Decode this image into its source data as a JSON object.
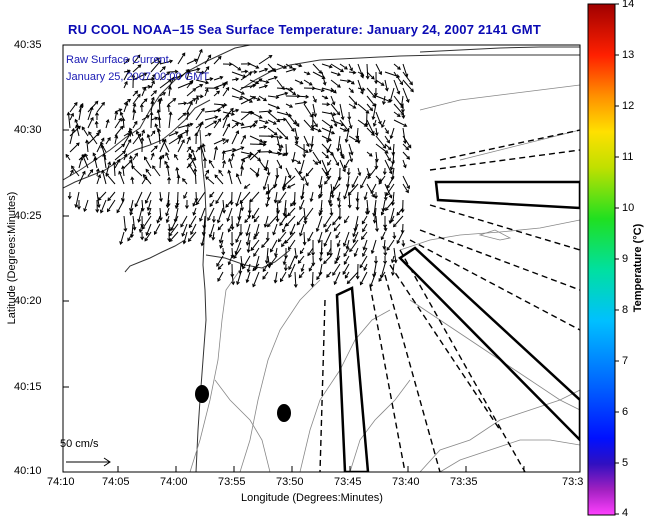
{
  "title": "RU COOL  NOAA–15  Sea Surface Temperature:  January 24, 2007 2141 GMT",
  "legend": {
    "line1": "Raw Surface Current",
    "line2": "January 25, 2007 00:00 GMT",
    "scale_label": "50 cm/s"
  },
  "axes": {
    "xlabel": "Longitude (Degrees:Minutes)",
    "ylabel": "Latitude (Degrees:Minutes)",
    "xticks": [
      "74:10",
      "74:05",
      "74:00",
      "73:55",
      "73:50",
      "73:45",
      "73:40",
      "73:35",
      "73:3"
    ],
    "yticks": [
      "40:35",
      "40:30",
      "40:25",
      "40:20",
      "40:15",
      "40:10"
    ]
  },
  "colorbar": {
    "label": "Temperature (°C)",
    "ticks": [
      "14",
      "13",
      "12",
      "11",
      "10",
      "9",
      "8",
      "7",
      "6",
      "5",
      "4"
    ],
    "min": 4,
    "max": 14
  }
}
